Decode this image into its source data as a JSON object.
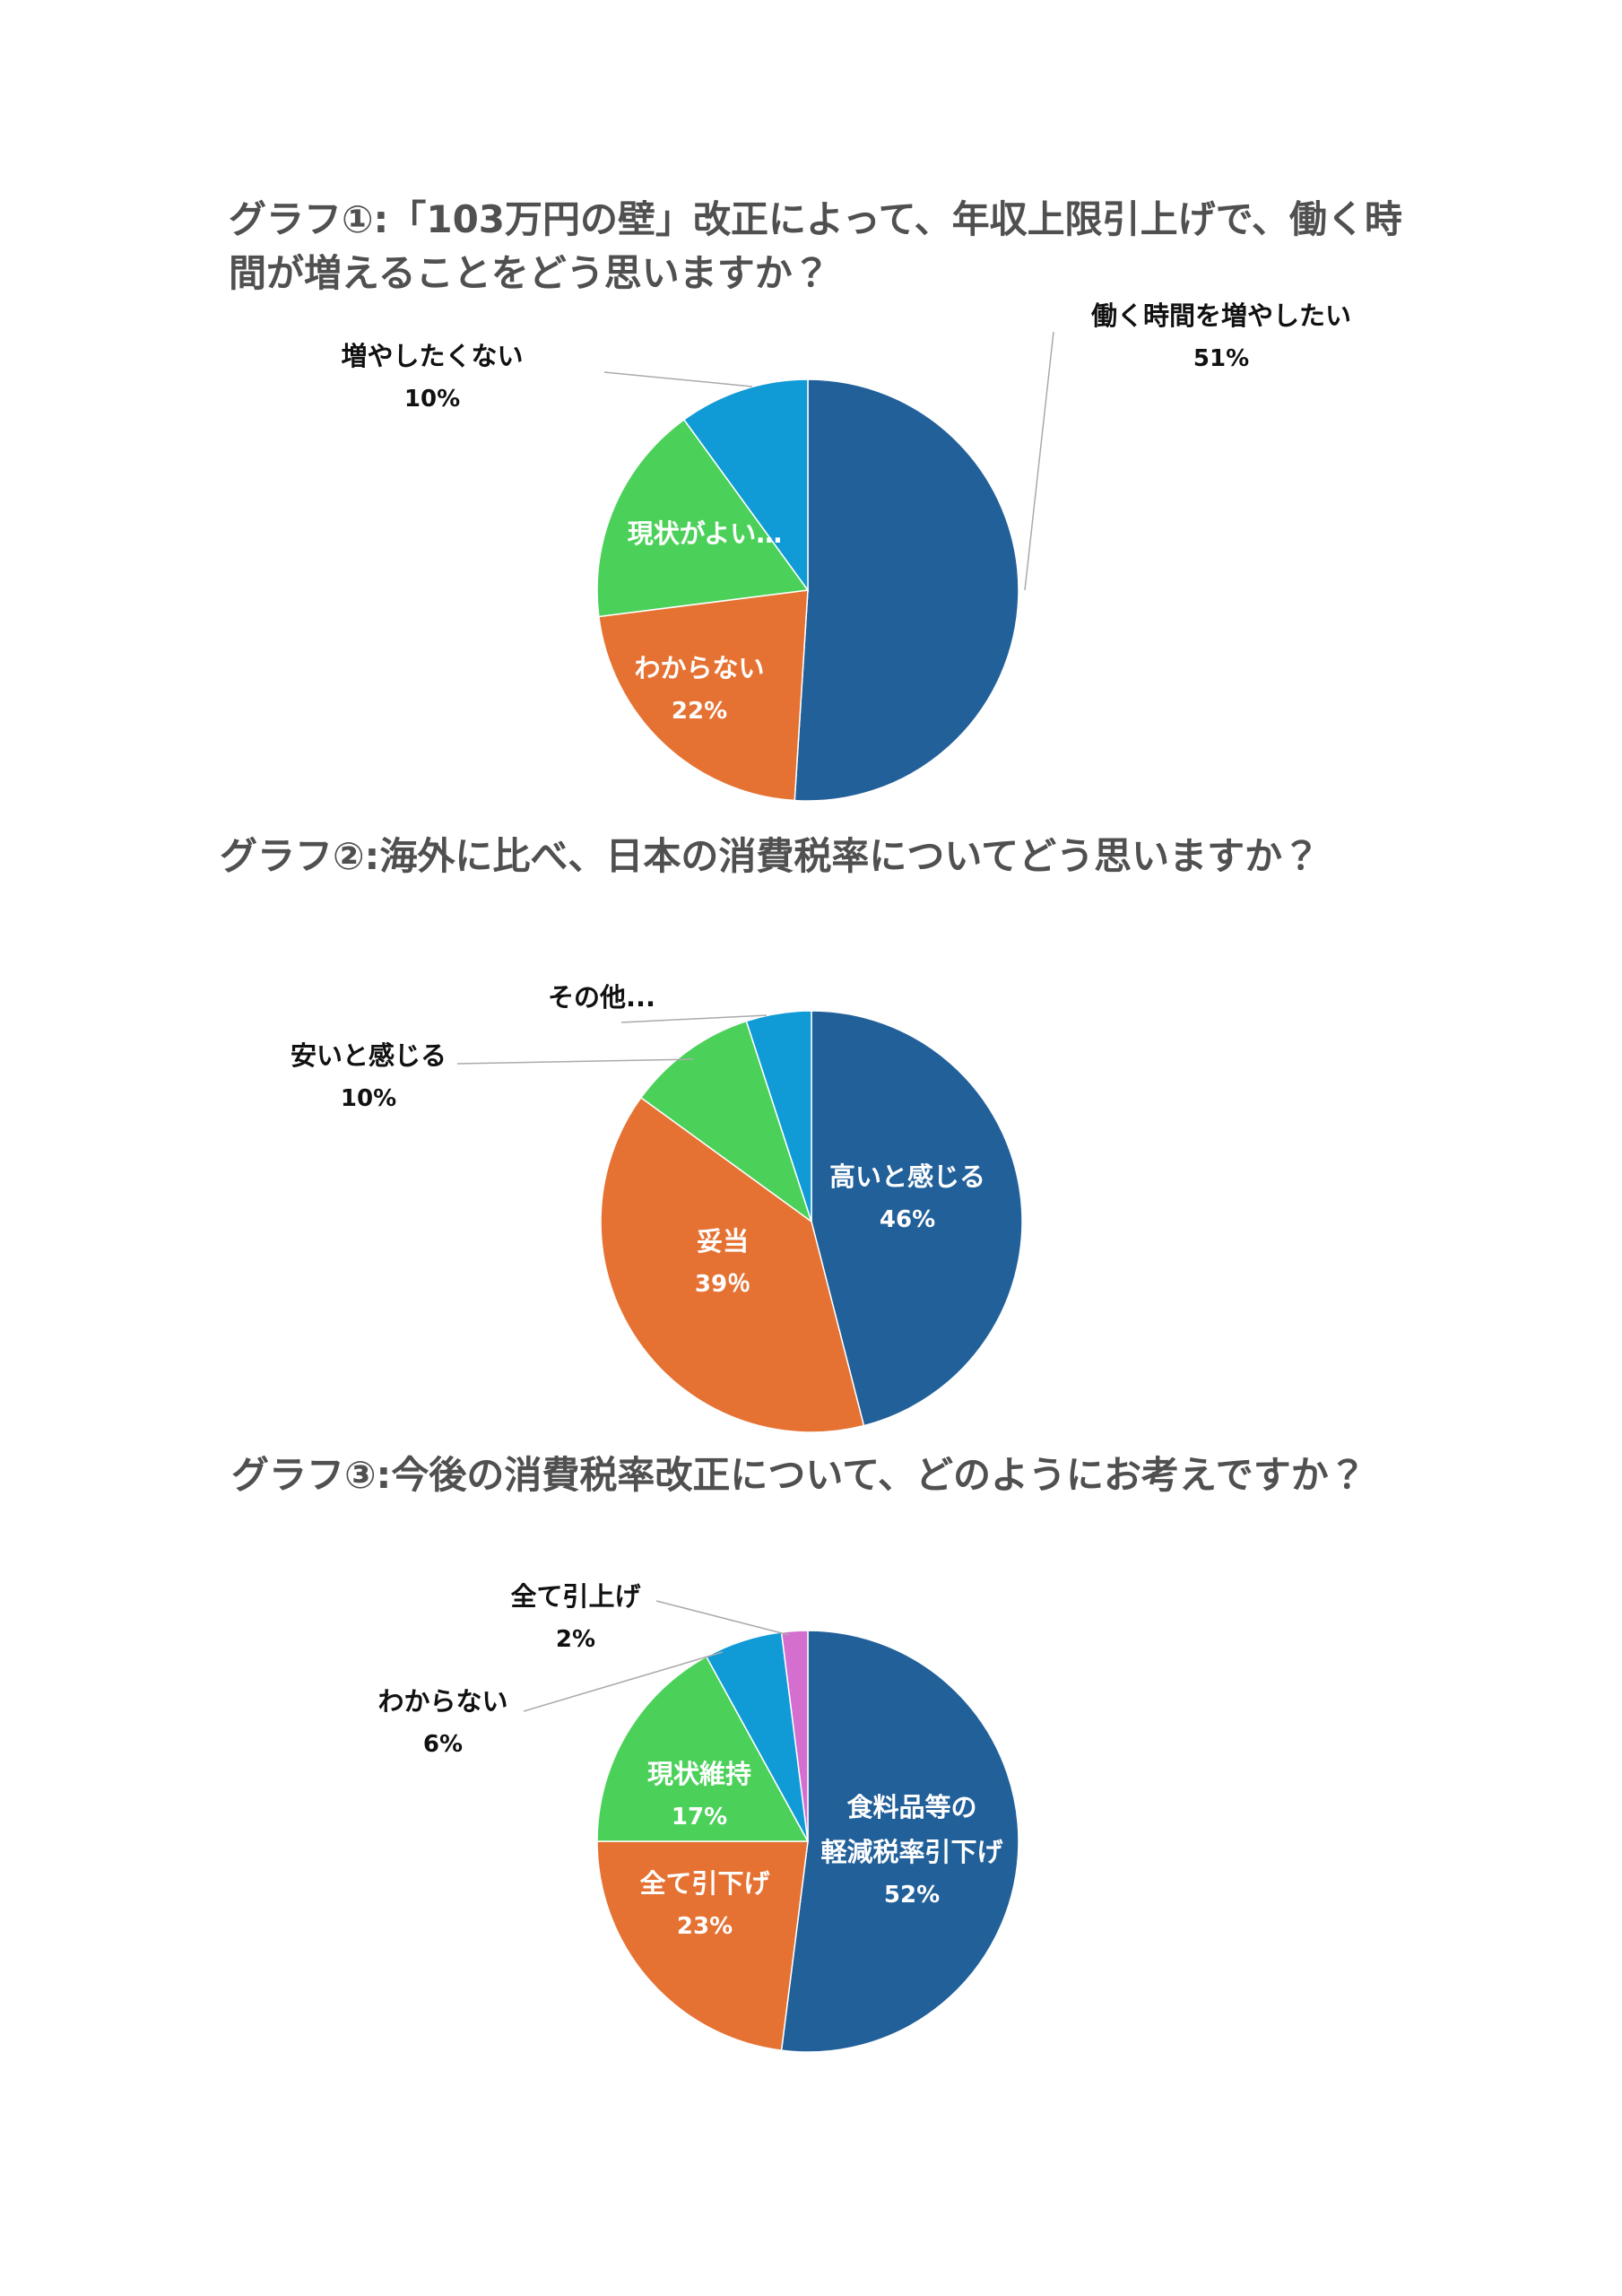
{
  "chart_data": [
    {
      "type": "pie",
      "title": "グラフ①:「103万円の壁」改正によって、年収上限引上げで、働く時間が増えることをどう思いますか？",
      "categories": [
        "働く時間を増やしたい",
        "わからない",
        "現状がよい…",
        "増やしたくない"
      ],
      "values": [
        51,
        22,
        17,
        10
      ],
      "value_labels": [
        "51%",
        "22%",
        null,
        "10%"
      ],
      "colors": [
        "#22609a",
        "#e57233",
        "#4bd15a",
        "#119bd6"
      ]
    },
    {
      "type": "pie",
      "title": "グラフ②:海外に比べ、日本の消費税率についてどう思いますか？",
      "categories": [
        "高いと感じる",
        "妥当",
        "安いと感じる",
        "その他..."
      ],
      "values": [
        46,
        39,
        10,
        5
      ],
      "value_labels": [
        "46%",
        "39％",
        "10%",
        null
      ],
      "colors": [
        "#22609a",
        "#e57233",
        "#4bd15a",
        "#119bd6"
      ]
    },
    {
      "type": "pie",
      "title": "グラフ③:今後の消費税率改正について、どのようにお考えですか？",
      "categories": [
        "食料品等の\n軽減税率引下げ",
        "全て引下げ",
        "現状維持",
        "わからない",
        "全て引上げ"
      ],
      "values": [
        52,
        23,
        17,
        6,
        2
      ],
      "value_labels": [
        "52%",
        "23%",
        "17%",
        "6%",
        "2%"
      ],
      "colors": [
        "#22609a",
        "#e57233",
        "#4bd15a",
        "#119bd6",
        "#d46fd0"
      ]
    }
  ]
}
